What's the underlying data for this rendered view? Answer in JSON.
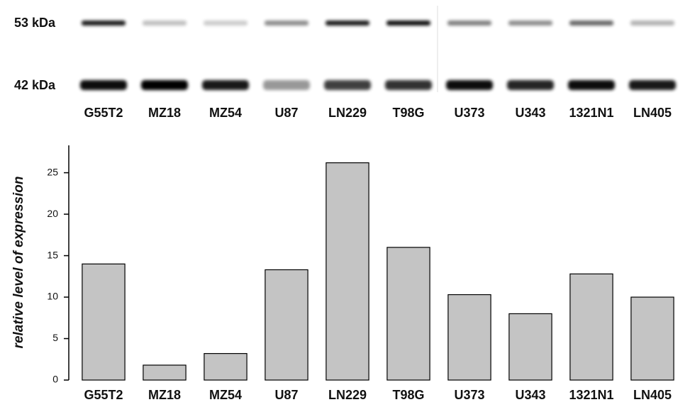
{
  "blot": {
    "markers": [
      "53 kDa",
      "42 kDa"
    ],
    "lanes": [
      "G55T2",
      "MZ18",
      "MZ54",
      "U87",
      "LN229",
      "T98G",
      "U373",
      "U343",
      "1321N1",
      "LN405"
    ]
  },
  "chart_data": {
    "type": "bar",
    "y_label": "relative level of expression",
    "categories": [
      "G55T2",
      "MZ18",
      "MZ54",
      "U87",
      "LN229",
      "T98G",
      "U373",
      "U343",
      "1321N1",
      "LN405"
    ],
    "values": [
      14,
      1.8,
      3.2,
      13.3,
      26.2,
      16,
      10.3,
      8,
      12.8,
      10
    ],
    "color": "#c4c4c4",
    "ylim": [
      0,
      28.3
    ],
    "yticks": [
      0,
      5,
      10,
      15,
      20,
      25
    ],
    "grid": false
  }
}
